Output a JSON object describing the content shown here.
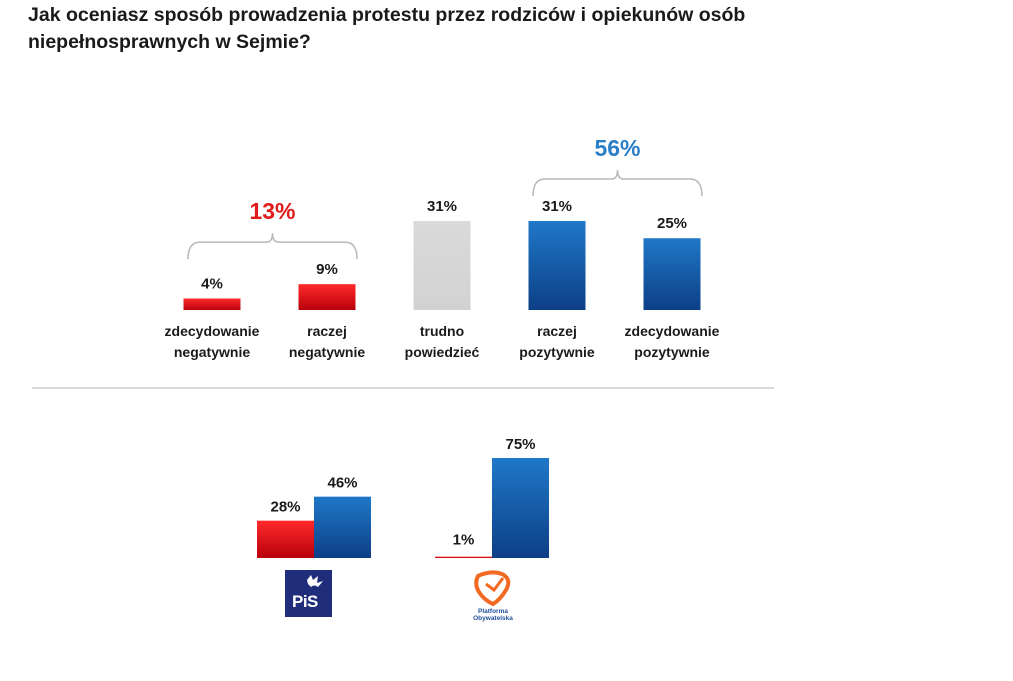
{
  "title": "Jak oceniasz sposób prowadzenia protestu przez rodziców i opiekunów osób niepełnosprawnych w Sejmie?",
  "colors": {
    "negative": "#e8191d",
    "neutral": "#d9d9d9",
    "positive": "#1f6fbf",
    "negative_total": "#e01b1b",
    "positive_total": "#2a7fc6"
  },
  "chart_data": [
    {
      "type": "bar",
      "title": "Jak oceniasz sposób prowadzenia protestu przez rodziców i opiekunów osób niepełnosprawnych w Sejmie?",
      "categories": [
        [
          "zdecydowanie",
          "negatywnie"
        ],
        [
          "raczej",
          "negatywnie"
        ],
        [
          "trudno",
          "powiedzieć"
        ],
        [
          "raczej",
          "pozytywnie"
        ],
        [
          "zdecydowanie",
          "pozytywnie"
        ]
      ],
      "values": [
        4,
        9,
        31,
        31,
        25
      ],
      "value_labels": [
        "4%",
        "9%",
        "31%",
        "31%",
        "25%"
      ],
      "bar_colors": [
        "negative",
        "negative",
        "neutral",
        "positive",
        "positive"
      ],
      "groups": [
        {
          "label": "13%",
          "members": [
            0,
            1
          ],
          "color": "negative_total"
        },
        {
          "label": "56%",
          "members": [
            3,
            4
          ],
          "color": "positive_total"
        }
      ],
      "ylim": [
        0,
        35
      ],
      "unit": "%"
    },
    {
      "type": "bar",
      "series": [
        {
          "name": "negatywnie",
          "values": [
            28,
            1
          ],
          "value_labels": [
            "28%",
            "1%"
          ],
          "color": "negative"
        },
        {
          "name": "pozytywnie",
          "values": [
            46,
            75
          ],
          "value_labels": [
            "46%",
            "75%"
          ],
          "color": "positive"
        }
      ],
      "categories": [
        "PiS",
        "Platforma Obywatelska"
      ],
      "ylim": [
        0,
        80
      ],
      "unit": "%"
    }
  ],
  "logos": {
    "pis": {
      "text": "PiS"
    },
    "po": {
      "line1": "Platforma",
      "line2": "Obywatelska"
    }
  }
}
